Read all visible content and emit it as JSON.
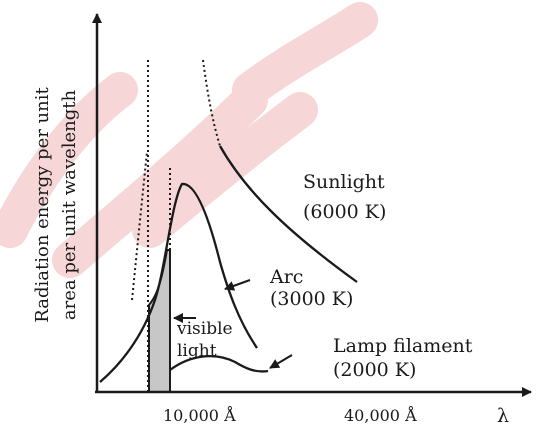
{
  "axes": {
    "y_label_line1": "Radiation energy per unit",
    "y_label_line2": "area per unit wavelength",
    "x_symbol": "λ",
    "x_ticks": [
      "10,000 Å",
      "40,000 Å"
    ]
  },
  "curves": {
    "sunlight": {
      "name": "Sunlight",
      "temp": "(6000 K)"
    },
    "arc": {
      "name": "Arc",
      "temp": "(3000 K)"
    },
    "lamp": {
      "name": "Lamp filament",
      "temp": "(2000 K)"
    }
  },
  "visible_region": {
    "label_line1": "visible",
    "label_line2": "light",
    "fill_color": "#c7c7c7"
  },
  "colors": {
    "ink": "#1a1a1a",
    "watermark": "#f6d6d6"
  }
}
